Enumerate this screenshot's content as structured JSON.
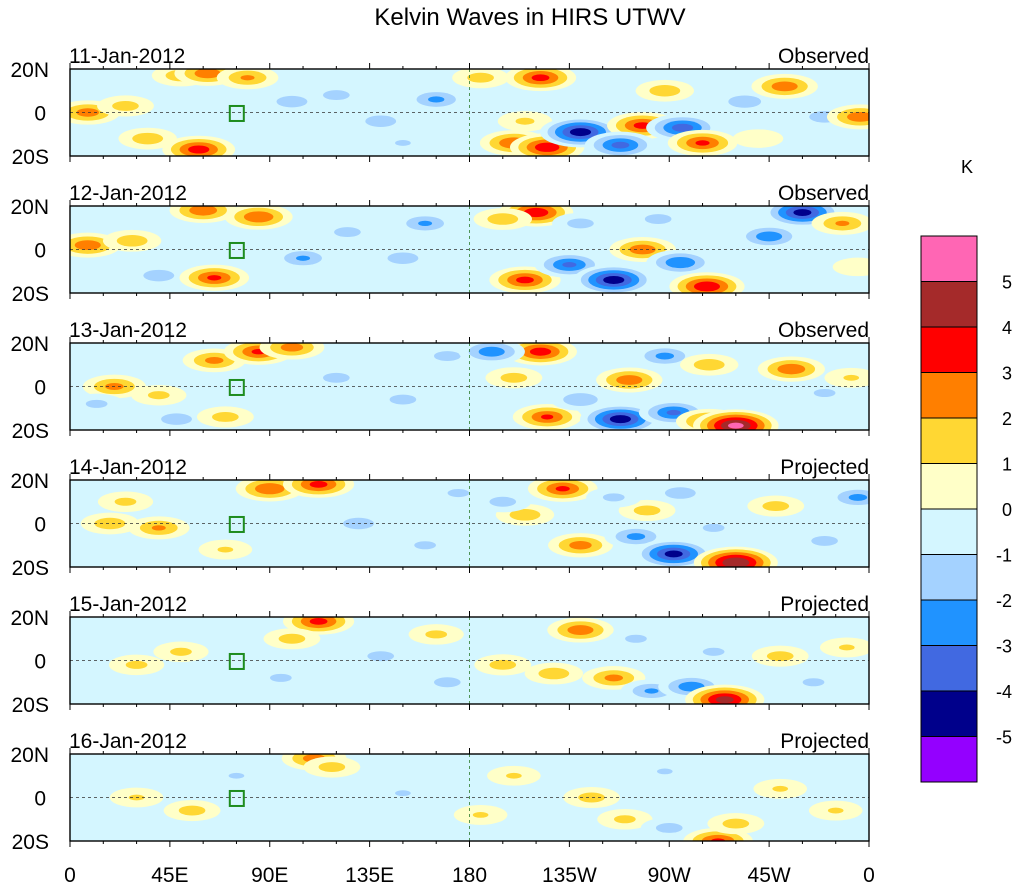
{
  "title": "Kelvin Waves in HIRS UTWV",
  "colorbar": {
    "units": "K",
    "levels": [
      "5",
      "4",
      "3",
      "2",
      "1",
      "0",
      "-1",
      "-2",
      "-3",
      "-4",
      "-5"
    ],
    "colors": [
      "#ff66b4",
      "#a52a2a",
      "#ff0000",
      "#ff7f00",
      "#ffd733",
      "#ffffc8",
      "#d4f6ff",
      "#a4d2ff",
      "#2093ff",
      "#4169e1",
      "#00008b",
      "#9400ff"
    ]
  },
  "xaxis": {
    "ticks": [
      "0",
      "45E",
      "90E",
      "135E",
      "180",
      "135W",
      "90W",
      "45W",
      "0"
    ]
  },
  "yaxis": {
    "ticks": [
      "20N",
      "0",
      "20S"
    ]
  },
  "panels": [
    {
      "date": "11-Jan-2012",
      "kind": "Observed"
    },
    {
      "date": "12-Jan-2012",
      "kind": "Observed"
    },
    {
      "date": "13-Jan-2012",
      "kind": "Observed"
    },
    {
      "date": "14-Jan-2012",
      "kind": "Projected"
    },
    {
      "date": "15-Jan-2012",
      "kind": "Projected"
    },
    {
      "date": "16-Jan-2012",
      "kind": "Projected"
    }
  ],
  "map_colors": {
    "coast": "#1e8c1e",
    "background": "#d4f6ff",
    "ref_line": "#2e7d2e"
  },
  "anomalies": [
    [
      {
        "lon": 8,
        "lat": 0,
        "v": 2.6
      },
      {
        "lon": 25,
        "lat": 3,
        "v": 1.6
      },
      {
        "lon": 50,
        "lat": 17,
        "v": 1.8
      },
      {
        "lon": 62,
        "lat": 18,
        "v": 2.8
      },
      {
        "lon": 80,
        "lat": 16,
        "v": 2.2
      },
      {
        "lon": 58,
        "lat": -17,
        "v": 3.6
      },
      {
        "lon": 35,
        "lat": -12,
        "v": 1.8
      },
      {
        "lon": 100,
        "lat": 5,
        "v": -1.8
      },
      {
        "lon": 120,
        "lat": 8,
        "v": -1.6
      },
      {
        "lon": 140,
        "lat": -4,
        "v": -1.8
      },
      {
        "lon": 165,
        "lat": 6,
        "v": -2.3
      },
      {
        "lon": 185,
        "lat": 16,
        "v": 1.6
      },
      {
        "lon": 205,
        "lat": -4,
        "v": 1.3
      },
      {
        "lon": 200,
        "lat": -14,
        "v": 3.0
      },
      {
        "lon": 215,
        "lat": -16,
        "v": 3.8
      },
      {
        "lon": 230,
        "lat": -9,
        "v": -4.6
      },
      {
        "lon": 258,
        "lat": -6,
        "v": 3.4
      },
      {
        "lon": 248,
        "lat": -15,
        "v": -3.4
      },
      {
        "lon": 276,
        "lat": -7,
        "v": -3.6
      },
      {
        "lon": 285,
        "lat": -14,
        "v": 3.2
      },
      {
        "lon": 212,
        "lat": 16,
        "v": 3.4
      },
      {
        "lon": 268,
        "lat": 10,
        "v": 1.8
      },
      {
        "lon": 304,
        "lat": 5,
        "v": -1.9
      },
      {
        "lon": 322,
        "lat": 12,
        "v": 2.8
      },
      {
        "lon": 340,
        "lat": -2,
        "v": -1.8
      },
      {
        "lon": 356,
        "lat": -2,
        "v": 2.8
      },
      {
        "lon": 310,
        "lat": -12,
        "v": 0.8
      },
      {
        "lon": 150,
        "lat": -14,
        "v": -1.2
      }
    ],
    [
      {
        "lon": 8,
        "lat": 2,
        "v": 2.8
      },
      {
        "lon": 28,
        "lat": 4,
        "v": 1.8
      },
      {
        "lon": 60,
        "lat": 18,
        "v": 2.9
      },
      {
        "lon": 85,
        "lat": 15,
        "v": 3.0
      },
      {
        "lon": 40,
        "lat": -12,
        "v": -1.8
      },
      {
        "lon": 65,
        "lat": -13,
        "v": 3.2
      },
      {
        "lon": 105,
        "lat": -4,
        "v": -2.2
      },
      {
        "lon": 125,
        "lat": 8,
        "v": -1.6
      },
      {
        "lon": 150,
        "lat": -4,
        "v": -1.8
      },
      {
        "lon": 160,
        "lat": 12,
        "v": -2.2
      },
      {
        "lon": 210,
        "lat": 17,
        "v": 3.8
      },
      {
        "lon": 195,
        "lat": 14,
        "v": 1.8
      },
      {
        "lon": 205,
        "lat": -14,
        "v": 3.4
      },
      {
        "lon": 225,
        "lat": -7,
        "v": -3.2
      },
      {
        "lon": 245,
        "lat": -14,
        "v": -4.6
      },
      {
        "lon": 258,
        "lat": 0,
        "v": 2.8
      },
      {
        "lon": 275,
        "lat": -6,
        "v": -3.0
      },
      {
        "lon": 287,
        "lat": -17,
        "v": 3.9
      },
      {
        "lon": 265,
        "lat": 14,
        "v": -1.6
      },
      {
        "lon": 315,
        "lat": 6,
        "v": -2.8
      },
      {
        "lon": 330,
        "lat": 17,
        "v": -4.4
      },
      {
        "lon": 348,
        "lat": 12,
        "v": 2.2
      },
      {
        "lon": 355,
        "lat": -8,
        "v": 0.8
      },
      {
        "lon": 230,
        "lat": 12,
        "v": -1.6
      }
    ],
    [
      {
        "lon": 20,
        "lat": 0,
        "v": 2.4
      },
      {
        "lon": 40,
        "lat": -4,
        "v": 1.4
      },
      {
        "lon": 12,
        "lat": -8,
        "v": -1.4
      },
      {
        "lon": 65,
        "lat": 12,
        "v": 2.4
      },
      {
        "lon": 85,
        "lat": 16,
        "v": 3.2
      },
      {
        "lon": 100,
        "lat": 18,
        "v": 2.6
      },
      {
        "lon": 48,
        "lat": -15,
        "v": -1.8
      },
      {
        "lon": 70,
        "lat": -14,
        "v": 1.6
      },
      {
        "lon": 120,
        "lat": 4,
        "v": -1.6
      },
      {
        "lon": 150,
        "lat": -6,
        "v": -1.6
      },
      {
        "lon": 170,
        "lat": 14,
        "v": -1.6
      },
      {
        "lon": 200,
        "lat": 4,
        "v": 1.6
      },
      {
        "lon": 212,
        "lat": 16,
        "v": 3.6
      },
      {
        "lon": 190,
        "lat": 16,
        "v": -2.8
      },
      {
        "lon": 215,
        "lat": -14,
        "v": 3.1
      },
      {
        "lon": 230,
        "lat": -6,
        "v": -2.0
      },
      {
        "lon": 248,
        "lat": -15,
        "v": -4.6
      },
      {
        "lon": 252,
        "lat": 3,
        "v": 2.8
      },
      {
        "lon": 272,
        "lat": -12,
        "v": -3.2
      },
      {
        "lon": 288,
        "lat": -16,
        "v": 2.8
      },
      {
        "lon": 300,
        "lat": -18,
        "v": 5.2
      },
      {
        "lon": 268,
        "lat": 14,
        "v": -2.4
      },
      {
        "lon": 288,
        "lat": 10,
        "v": 1.8
      },
      {
        "lon": 325,
        "lat": 8,
        "v": 2.9
      },
      {
        "lon": 340,
        "lat": -3,
        "v": -1.4
      },
      {
        "lon": 352,
        "lat": 4,
        "v": 1.2
      }
    ],
    [
      {
        "lon": 18,
        "lat": 0,
        "v": 1.8
      },
      {
        "lon": 40,
        "lat": -2,
        "v": 2.2
      },
      {
        "lon": 25,
        "lat": 10,
        "v": 1.4
      },
      {
        "lon": 90,
        "lat": 16,
        "v": 3.0
      },
      {
        "lon": 112,
        "lat": 18,
        "v": 3.4
      },
      {
        "lon": 70,
        "lat": -12,
        "v": 1.2
      },
      {
        "lon": 130,
        "lat": 0,
        "v": -1.8
      },
      {
        "lon": 160,
        "lat": -10,
        "v": -1.4
      },
      {
        "lon": 175,
        "lat": 14,
        "v": -1.4
      },
      {
        "lon": 205,
        "lat": 4,
        "v": 1.8
      },
      {
        "lon": 222,
        "lat": 16,
        "v": 3.2
      },
      {
        "lon": 195,
        "lat": 10,
        "v": -1.6
      },
      {
        "lon": 230,
        "lat": -10,
        "v": 2.6
      },
      {
        "lon": 255,
        "lat": -6,
        "v": -2.4
      },
      {
        "lon": 272,
        "lat": -14,
        "v": -4.4
      },
      {
        "lon": 260,
        "lat": 6,
        "v": 1.6
      },
      {
        "lon": 300,
        "lat": -18,
        "v": 5.0
      },
      {
        "lon": 290,
        "lat": -2,
        "v": -1.4
      },
      {
        "lon": 275,
        "lat": 14,
        "v": -1.8
      },
      {
        "lon": 318,
        "lat": 8,
        "v": 1.6
      },
      {
        "lon": 340,
        "lat": -8,
        "v": -1.6
      },
      {
        "lon": 355,
        "lat": 12,
        "v": -2.4
      },
      {
        "lon": 245,
        "lat": 12,
        "v": -1.4
      }
    ],
    [
      {
        "lon": 30,
        "lat": -2,
        "v": 1.4
      },
      {
        "lon": 50,
        "lat": 4,
        "v": 1.4
      },
      {
        "lon": 95,
        "lat": -8,
        "v": -1.4
      },
      {
        "lon": 112,
        "lat": 18,
        "v": 3.4
      },
      {
        "lon": 100,
        "lat": 10,
        "v": 1.6
      },
      {
        "lon": 140,
        "lat": 2,
        "v": -1.6
      },
      {
        "lon": 170,
        "lat": -10,
        "v": -1.6
      },
      {
        "lon": 165,
        "lat": 12,
        "v": 1.4
      },
      {
        "lon": 195,
        "lat": -2,
        "v": 1.6
      },
      {
        "lon": 218,
        "lat": -6,
        "v": 1.8
      },
      {
        "lon": 230,
        "lat": 14,
        "v": 2.8
      },
      {
        "lon": 245,
        "lat": -8,
        "v": 2.4
      },
      {
        "lon": 262,
        "lat": -14,
        "v": -2.2
      },
      {
        "lon": 280,
        "lat": -12,
        "v": -2.8
      },
      {
        "lon": 295,
        "lat": -18,
        "v": 4.4
      },
      {
        "lon": 290,
        "lat": 4,
        "v": -1.4
      },
      {
        "lon": 320,
        "lat": 2,
        "v": 1.6
      },
      {
        "lon": 335,
        "lat": -10,
        "v": -1.4
      },
      {
        "lon": 350,
        "lat": 6,
        "v": 1.2
      },
      {
        "lon": 255,
        "lat": 10,
        "v": -1.4
      }
    ],
    [
      {
        "lon": 30,
        "lat": 0,
        "v": 1.2
      },
      {
        "lon": 55,
        "lat": -6,
        "v": 1.6
      },
      {
        "lon": 110,
        "lat": 18,
        "v": 2.6
      },
      {
        "lon": 118,
        "lat": 14,
        "v": 1.6
      },
      {
        "lon": 75,
        "lat": 10,
        "v": -1.2
      },
      {
        "lon": 150,
        "lat": 2,
        "v": -1.2
      },
      {
        "lon": 185,
        "lat": -8,
        "v": 1.2
      },
      {
        "lon": 200,
        "lat": 10,
        "v": 1.2
      },
      {
        "lon": 235,
        "lat": 0,
        "v": 1.6
      },
      {
        "lon": 250,
        "lat": -10,
        "v": 1.4
      },
      {
        "lon": 270,
        "lat": -14,
        "v": -1.6
      },
      {
        "lon": 292,
        "lat": -20,
        "v": 3.2
      },
      {
        "lon": 300,
        "lat": -12,
        "v": 1.6
      },
      {
        "lon": 320,
        "lat": 4,
        "v": 1.2
      },
      {
        "lon": 345,
        "lat": -6,
        "v": 1.2
      },
      {
        "lon": 268,
        "lat": 12,
        "v": -1.2
      }
    ]
  ]
}
